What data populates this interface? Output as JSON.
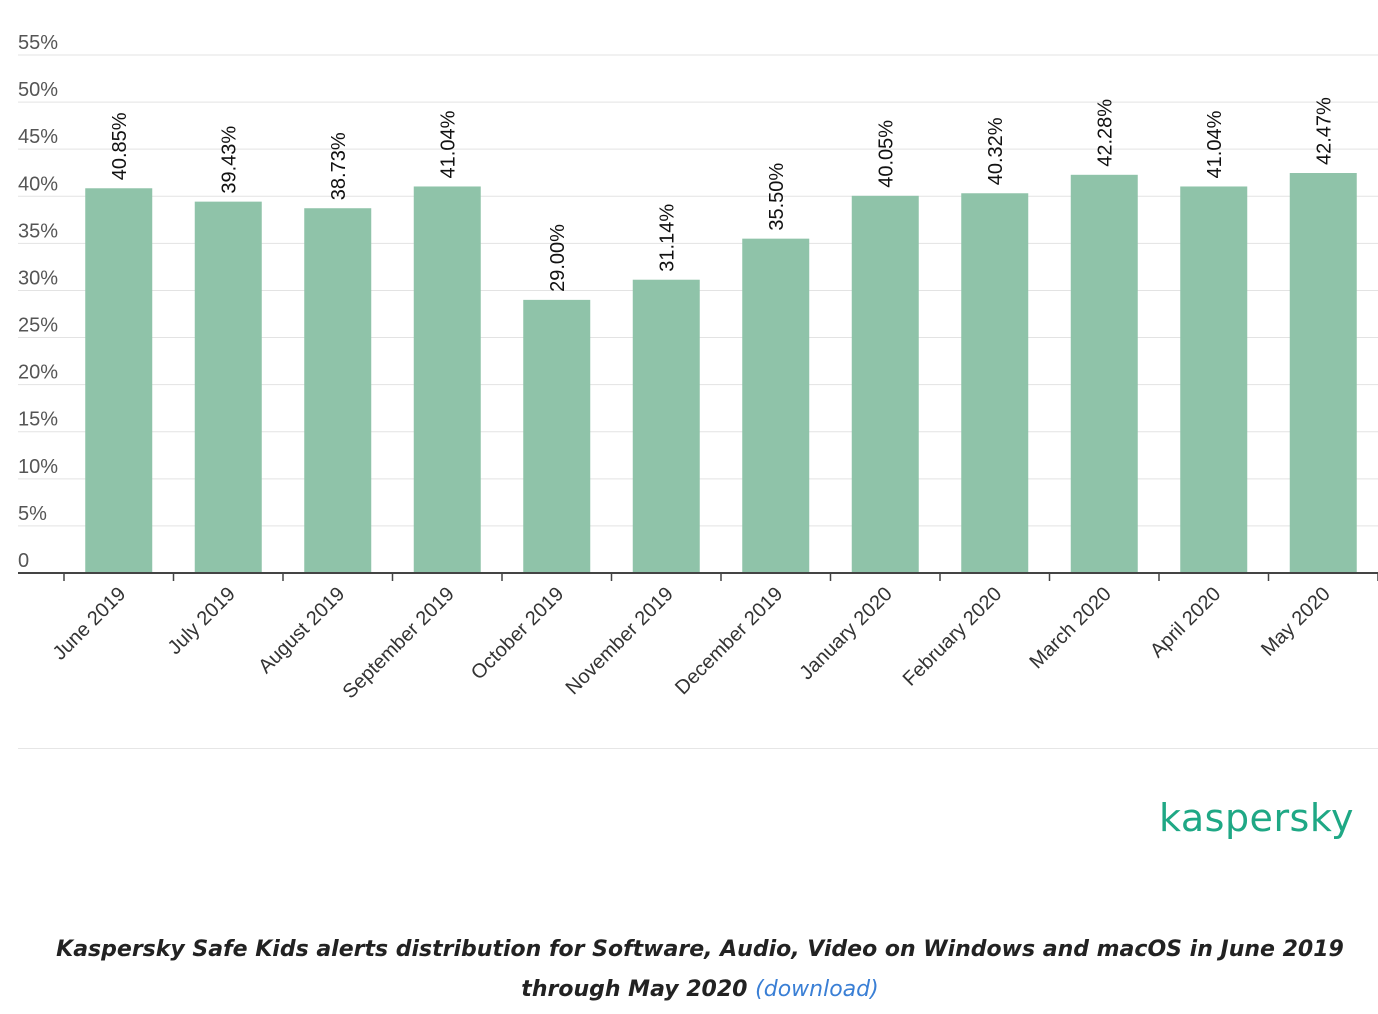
{
  "chart_data": {
    "type": "bar",
    "categories": [
      "June 2019",
      "July 2019",
      "August 2019",
      "September 2019",
      "October 2019",
      "November 2019",
      "December 2019",
      "January 2020",
      "February 2020",
      "March 2020",
      "April 2020",
      "May 2020"
    ],
    "values": [
      40.85,
      39.43,
      38.73,
      41.04,
      29.0,
      31.14,
      35.5,
      40.05,
      40.32,
      42.28,
      41.04,
      42.47
    ],
    "value_labels": [
      "40.85%",
      "39.43%",
      "38.73%",
      "41.04%",
      "29.00%",
      "31.14%",
      "35.50%",
      "40.05%",
      "40.32%",
      "42.28%",
      "41.04%",
      "42.47%"
    ],
    "yticks": [
      0,
      5,
      10,
      15,
      20,
      25,
      30,
      35,
      40,
      45,
      50,
      55
    ],
    "ytick_labels": [
      "0",
      "5%",
      "10%",
      "15%",
      "20%",
      "25%",
      "30%",
      "35%",
      "40%",
      "45%",
      "50%",
      "55%"
    ],
    "ylim": [
      0,
      55
    ],
    "title": "",
    "xlabel": "",
    "ylabel": "",
    "grid": true,
    "bar_color": "#8fc3a9"
  },
  "logo": {
    "text": "kaspersky",
    "color": "#1fa885"
  },
  "caption": {
    "text": "Kaspersky Safe Kids alerts distribution for Software, Audio, Video on Windows and macOS in June 2019 through May 2020",
    "link": "(download)",
    "link_color": "#3a7fd5"
  }
}
